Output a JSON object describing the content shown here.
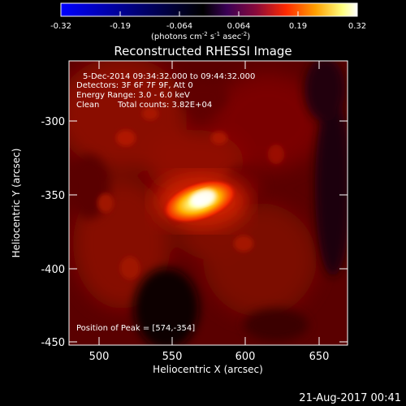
{
  "colorbar": {
    "tick_labels": [
      "-0.32",
      "-0.19",
      "-0.064",
      "0.064",
      "0.19",
      "0.32"
    ],
    "unit_main": "(photons cm",
    "unit_exp1": "-2",
    "unit_s": " s",
    "unit_exp2": "-1",
    "unit_asec": " asec",
    "unit_exp3": "-2",
    "unit_close": ")",
    "gradient": [
      "#0000ff",
      "#000000",
      "#3a0055",
      "#8a0a3a",
      "#ff2a00",
      "#ffa000",
      "#ffff80",
      "#ffffff"
    ]
  },
  "title": "Reconstructed RHESSI Image",
  "info": {
    "time_range": "5-Dec-2014 09:34:32.000 to 09:44:32.000",
    "detectors": "Detectors: 3F 6F 7F 9F, Att 0",
    "energy": "Energy Range: 3.0 - 6.0 keV",
    "method": "Clean",
    "counts": "Total counts: 3.82E+04",
    "peak": "Position of Peak = [574,-354]"
  },
  "axes": {
    "xlabel": "Heliocentric X (arcsec)",
    "ylabel": "Heliocentric Y (arcsec)",
    "x_ticks": [
      "500",
      "550",
      "600",
      "650"
    ],
    "y_ticks": [
      "-300",
      "-350",
      "-400",
      "-450"
    ]
  },
  "footer": {
    "date": "21-Aug-2017 00:41"
  }
}
